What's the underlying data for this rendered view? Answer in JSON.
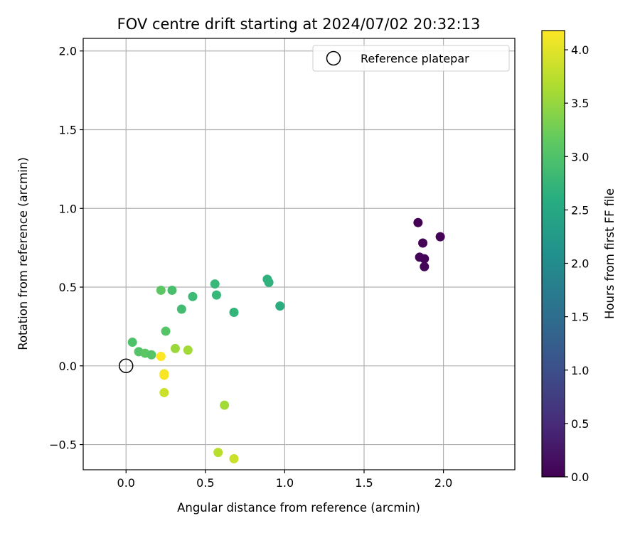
{
  "chart_data": {
    "type": "scatter",
    "title": "FOV centre drift starting at 2024/07/02 20:32:13",
    "xlabel": "Angular distance from reference (arcmin)",
    "ylabel": "Rotation from reference (arcmin)",
    "xlim": [
      -0.27,
      2.45
    ],
    "ylim": [
      -0.66,
      2.08
    ],
    "xticks": [
      0.0,
      0.5,
      1.0,
      1.5,
      2.0
    ],
    "xtick_labels": [
      "0.0",
      "0.5",
      "1.0",
      "1.5",
      "2.0"
    ],
    "yticks": [
      -0.5,
      0.0,
      0.5,
      1.0,
      1.5,
      2.0
    ],
    "ytick_labels": [
      "−0.5",
      "0.0",
      "0.5",
      "1.0",
      "1.5",
      "2.0"
    ],
    "grid": true,
    "legend": {
      "placement": "upper-right",
      "entries": [
        "Reference platepar"
      ]
    },
    "reference_point": {
      "x": 0.0,
      "y": 0.0,
      "label": "Reference platepar"
    },
    "colorbar": {
      "label": "Hours from first FF file",
      "colormap": "viridis",
      "range": [
        0.0,
        4.18
      ],
      "ticks": [
        0.0,
        0.5,
        1.0,
        1.5,
        2.0,
        2.5,
        3.0,
        3.5,
        4.0
      ],
      "tick_labels": [
        "0.0",
        "0.5",
        "1.0",
        "1.5",
        "2.0",
        "2.5",
        "3.0",
        "3.5",
        "4.0"
      ]
    },
    "points": [
      {
        "x": 1.84,
        "y": 0.91,
        "hours": 0.0
      },
      {
        "x": 1.98,
        "y": 0.82,
        "hours": 0.02
      },
      {
        "x": 1.87,
        "y": 0.78,
        "hours": 0.03
      },
      {
        "x": 1.85,
        "y": 0.69,
        "hours": 0.04
      },
      {
        "x": 1.88,
        "y": 0.68,
        "hours": 0.05
      },
      {
        "x": 1.88,
        "y": 0.63,
        "hours": 0.06
      },
      {
        "x": 0.97,
        "y": 0.38,
        "hours": 2.6
      },
      {
        "x": 0.89,
        "y": 0.55,
        "hours": 2.65
      },
      {
        "x": 0.9,
        "y": 0.53,
        "hours": 2.7
      },
      {
        "x": 0.68,
        "y": 0.34,
        "hours": 2.75
      },
      {
        "x": 0.56,
        "y": 0.52,
        "hours": 2.8
      },
      {
        "x": 0.57,
        "y": 0.45,
        "hours": 2.8
      },
      {
        "x": 0.42,
        "y": 0.44,
        "hours": 2.85
      },
      {
        "x": 0.35,
        "y": 0.36,
        "hours": 2.9
      },
      {
        "x": 0.29,
        "y": 0.48,
        "hours": 2.95
      },
      {
        "x": 0.22,
        "y": 0.48,
        "hours": 3.1
      },
      {
        "x": 0.25,
        "y": 0.22,
        "hours": 3.05
      },
      {
        "x": 0.04,
        "y": 0.15,
        "hours": 3.0
      },
      {
        "x": 0.08,
        "y": 0.09,
        "hours": 3.05
      },
      {
        "x": 0.12,
        "y": 0.08,
        "hours": 3.1
      },
      {
        "x": 0.16,
        "y": 0.07,
        "hours": 3.05
      },
      {
        "x": 0.31,
        "y": 0.11,
        "hours": 3.55
      },
      {
        "x": 0.39,
        "y": 0.1,
        "hours": 3.6
      },
      {
        "x": 0.62,
        "y": -0.25,
        "hours": 3.6
      },
      {
        "x": 0.58,
        "y": -0.55,
        "hours": 3.75
      },
      {
        "x": 0.68,
        "y": -0.59,
        "hours": 3.85
      },
      {
        "x": 0.24,
        "y": -0.17,
        "hours": 3.85
      },
      {
        "x": 0.24,
        "y": -0.05,
        "hours": 4.1
      },
      {
        "x": 0.24,
        "y": -0.06,
        "hours": 4.15
      },
      {
        "x": 0.22,
        "y": 0.06,
        "hours": 4.18
      }
    ]
  }
}
